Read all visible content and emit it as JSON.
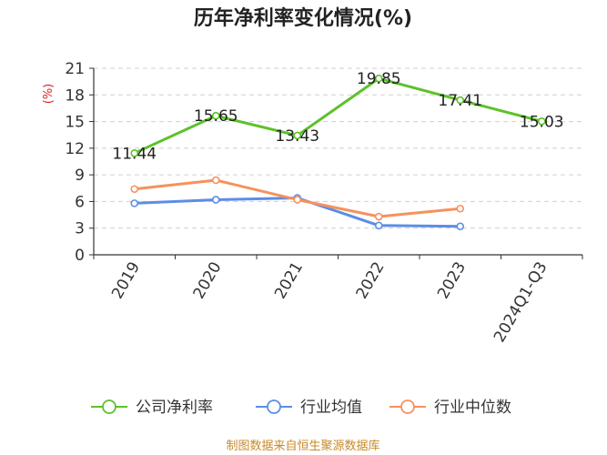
{
  "chart_data": {
    "type": "line",
    "title": "历年净利率变化情况(%)",
    "ylabel": "(%)",
    "ylim": [
      0,
      21
    ],
    "yticks": [
      0,
      3,
      6,
      9,
      12,
      15,
      18,
      21
    ],
    "categories": [
      "2019",
      "2020",
      "2021",
      "2022",
      "2023",
      "2024Q1-Q3"
    ],
    "grid": true,
    "legend_position": "bottom",
    "series": [
      {
        "name": "公司净利率",
        "color": "#5cc229",
        "values": [
          11.44,
          15.65,
          13.43,
          19.85,
          17.41,
          15.03
        ],
        "labels": [
          "11.44",
          "15.65",
          "13.43",
          "19.85",
          "17.41",
          "15.03"
        ]
      },
      {
        "name": "行业均值",
        "color": "#5b8ee6",
        "values": [
          5.8,
          6.2,
          6.4,
          3.3,
          3.2,
          null
        ]
      },
      {
        "name": "行业中位数",
        "color": "#f5925e",
        "values": [
          7.4,
          8.4,
          6.2,
          4.3,
          5.2,
          null
        ]
      }
    ]
  },
  "source": "制图数据来自恒生聚源数据库"
}
